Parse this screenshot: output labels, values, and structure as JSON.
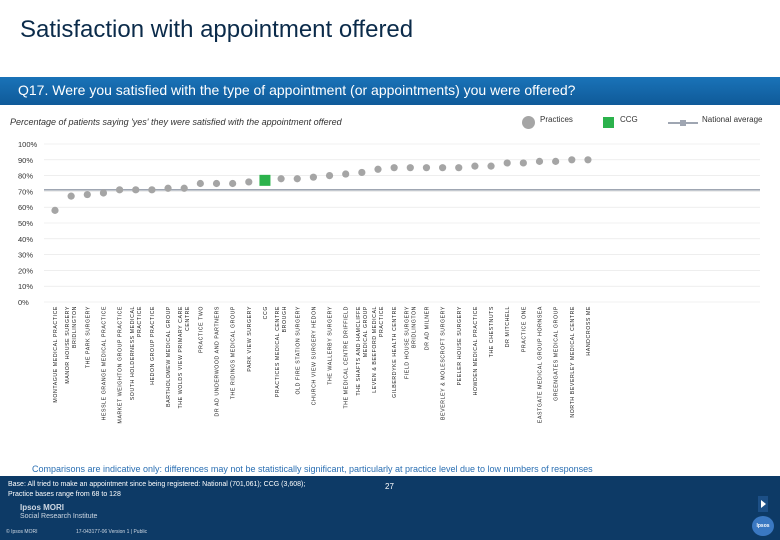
{
  "page": {
    "title": "Satisfaction with appointment offered",
    "question": "Q17. Were you satisfied with the type of appointment (or appointments) you were offered?",
    "subtitle": "Percentage of patients saying 'yes' they were satisfied with the appointment offered",
    "note": "Comparisons are indicative only: differences may not be statistically significant, particularly at practice level due to low numbers of responses",
    "base_line1": "Base: All tried to make an appointment since being registered: National (701,061); CCG (3,608);",
    "base_line2": "Practice bases range from 68 to 128",
    "page_number": "27",
    "logo_line1": "Ipsos MORI",
    "logo_line2": "Social Research Institute",
    "copyright": "© Ipsos MORI",
    "version": "17-043177-06 Version 1 | Public",
    "ipsos_mark": "Ipsos"
  },
  "legend": {
    "practices": "Practices",
    "ccg": "CCG",
    "national": "National average"
  },
  "colors": {
    "practice_marker": "#a5a5a5",
    "ccg_marker": "#2bb24c",
    "national_line": "#9fa6b2",
    "header_blue": "#1a73b8",
    "footer_navy": "#0d3a66"
  },
  "chart_data": {
    "type": "scatter",
    "ylim": [
      0,
      100
    ],
    "yticks": [
      "0%",
      "10%",
      "20%",
      "30%",
      "40%",
      "50%",
      "60%",
      "70%",
      "80%",
      "90%",
      "100%"
    ],
    "national_average": 71,
    "categories": [
      {
        "label": "MONTAGUE MEDICAL PRACTICE",
        "value": 58,
        "kind": "practice"
      },
      {
        "label": "MANOR HOUSE SURGERY BRIDLINGTON",
        "value": 67,
        "kind": "practice"
      },
      {
        "label": "THE PARK SURGERY",
        "value": 68,
        "kind": "practice"
      },
      {
        "label": "HESSLE GRANGE MEDICAL PRACTICE",
        "value": 69,
        "kind": "practice"
      },
      {
        "label": "MARKET WEIGHTON GROUP PRACTICE",
        "value": 71,
        "kind": "practice"
      },
      {
        "label": "SOUTH HOLDERNESS MEDICAL PRACTICE",
        "value": 71,
        "kind": "practice"
      },
      {
        "label": "HEDON GROUP PRACTICE",
        "value": 71,
        "kind": "practice"
      },
      {
        "label": "BARTHOLOMEW MEDICAL GROUP",
        "value": 72,
        "kind": "practice"
      },
      {
        "label": "THE WOLDS VIEW PRIMARY CARE CENTRE",
        "value": 72,
        "kind": "practice"
      },
      {
        "label": "PRACTICE TWO",
        "value": 75,
        "kind": "practice"
      },
      {
        "label": "DR AD UNDERWOOD AND PARTNERS",
        "value": 75,
        "kind": "practice"
      },
      {
        "label": "THE RIDINGS MEDICAL GROUP",
        "value": 75,
        "kind": "practice"
      },
      {
        "label": "PARK VIEW SURGERY",
        "value": 76,
        "kind": "practice"
      },
      {
        "label": "CCG",
        "value": 77,
        "kind": "ccg"
      },
      {
        "label": "PRACTICES MEDICAL CENTRE BROUGH",
        "value": 78,
        "kind": "practice"
      },
      {
        "label": "OLD FIRE STATION SURGERY",
        "value": 78,
        "kind": "practice"
      },
      {
        "label": "CHURCH VIEW SURGERY HEDON",
        "value": 79,
        "kind": "practice"
      },
      {
        "label": "THE WALLERBY SURGERY",
        "value": 80,
        "kind": "practice"
      },
      {
        "label": "THE MEDICAL CENTRE DRIFFIELD",
        "value": 81,
        "kind": "practice"
      },
      {
        "label": "THE SHAFTS AND HAMCLIFFE MEDICAL GROUP",
        "value": 82,
        "kind": "practice"
      },
      {
        "label": "LEVEN & BEEFORD MEDICAL PRACTICE",
        "value": 84,
        "kind": "practice"
      },
      {
        "label": "GILBERDYKE HEALTH CENTRE",
        "value": 85,
        "kind": "practice"
      },
      {
        "label": "FIELD HOUSE SURGERY BRIDLINGTON",
        "value": 85,
        "kind": "practice"
      },
      {
        "label": "DR AD MILNER",
        "value": 85,
        "kind": "practice"
      },
      {
        "label": "BEVERLEY & MOLESCROFT SURGERY",
        "value": 85,
        "kind": "practice"
      },
      {
        "label": "PEELER HOUSE SURGERY",
        "value": 85,
        "kind": "practice"
      },
      {
        "label": "HOWDEN MEDICAL PRACTICE",
        "value": 86,
        "kind": "practice"
      },
      {
        "label": "THE CHESTNUTS",
        "value": 86,
        "kind": "practice"
      },
      {
        "label": "DR MITCHELL",
        "value": 88,
        "kind": "practice"
      },
      {
        "label": "PRACTICE ONE",
        "value": 88,
        "kind": "practice"
      },
      {
        "label": "EASTGATE MEDICAL GROUP HORNSEA",
        "value": 89,
        "kind": "practice"
      },
      {
        "label": "GREENGATES MEDICAL GROUP",
        "value": 89,
        "kind": "practice"
      },
      {
        "label": "NORTH BEVERLEY MEDICAL CENTRE",
        "value": 90,
        "kind": "practice"
      },
      {
        "label": "HANDCROSS ME",
        "value": 90,
        "kind": "practice"
      }
    ]
  }
}
